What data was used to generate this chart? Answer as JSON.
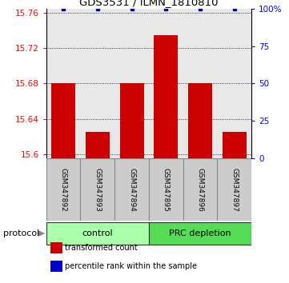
{
  "title": "GDS3531 / ILMN_1810810",
  "samples": [
    "GSM347892",
    "GSM347893",
    "GSM347894",
    "GSM347895",
    "GSM347896",
    "GSM347897"
  ],
  "transformed_counts": [
    15.68,
    15.625,
    15.68,
    15.735,
    15.68,
    15.625
  ],
  "percentile_ranks": [
    100,
    100,
    100,
    100,
    100,
    100
  ],
  "ylim_left": [
    15.595,
    15.765
  ],
  "ylim_right": [
    0,
    100
  ],
  "yticks_left": [
    15.6,
    15.64,
    15.68,
    15.72,
    15.76
  ],
  "yticks_right": [
    0,
    25,
    50,
    75,
    100
  ],
  "ytick_labels_right": [
    "0",
    "25",
    "50",
    "75",
    "100%"
  ],
  "groups": [
    {
      "label": "control",
      "indices": [
        0,
        1,
        2
      ],
      "color": "#aaffaa"
    },
    {
      "label": "PRC depletion",
      "indices": [
        3,
        4,
        5
      ],
      "color": "#55dd55"
    }
  ],
  "bar_color": "#cc0000",
  "dot_color": "#0000cc",
  "bar_width": 0.7,
  "plot_bg_color": "#e8e8e8",
  "protocol_label": "protocol",
  "legend_items": [
    {
      "label": "transformed count",
      "color": "#cc0000"
    },
    {
      "label": "percentile rank within the sample",
      "color": "#0000cc"
    }
  ]
}
